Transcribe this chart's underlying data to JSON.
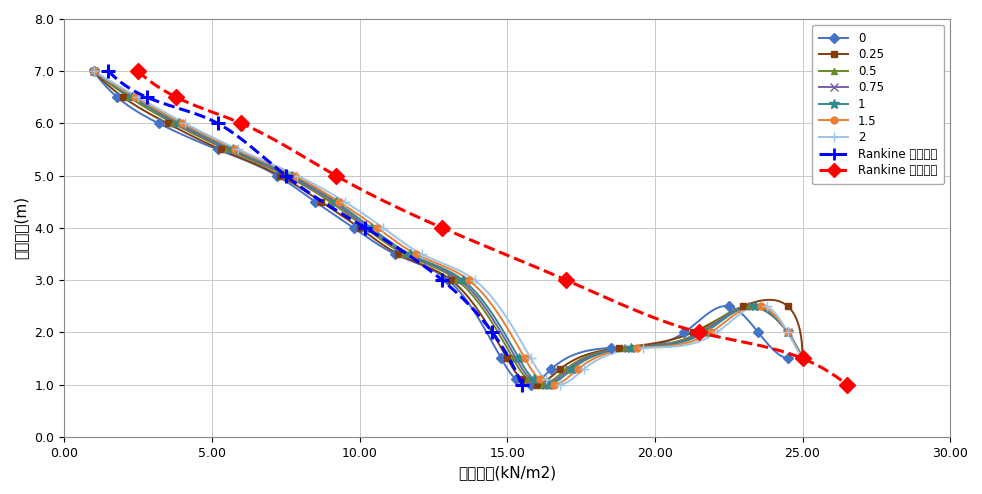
{
  "xlabel": "수평토압(kN/m2)",
  "ylabel": "옷벽높이(m)",
  "xlim": [
    0,
    30
  ],
  "ylim": [
    0,
    8.0
  ],
  "xticks": [
    0.0,
    5.0,
    10.0,
    15.0,
    20.0,
    25.0,
    30.0
  ],
  "yticks": [
    0.0,
    1.0,
    2.0,
    3.0,
    4.0,
    5.0,
    6.0,
    7.0,
    8.0
  ],
  "background_color": "#FFFFFF",
  "grid_color": "#C8C8C8",
  "series": [
    {
      "label": "0",
      "color": "#4472C4",
      "marker": "D",
      "ms": 5,
      "lw": 1.4,
      "x": [
        1.0,
        1.8,
        3.2,
        5.2,
        7.2,
        8.5,
        9.8,
        11.2,
        13.0,
        14.8,
        15.3,
        15.8,
        16.5,
        18.5,
        21.0,
        22.5,
        23.5,
        24.5
      ],
      "y": [
        7.0,
        6.5,
        6.0,
        5.5,
        5.0,
        4.5,
        4.0,
        3.5,
        3.0,
        1.5,
        1.1,
        1.0,
        1.3,
        1.7,
        2.0,
        2.5,
        2.0,
        1.5
      ]
    },
    {
      "label": "0.25",
      "color": "#843C0C",
      "marker": "s",
      "ms": 5,
      "lw": 1.4,
      "x": [
        1.0,
        2.0,
        3.5,
        5.3,
        7.3,
        8.7,
        10.0,
        11.3,
        13.1,
        15.0,
        15.5,
        16.0,
        16.8,
        18.8,
        21.3,
        23.0,
        24.5,
        25.0
      ],
      "y": [
        7.0,
        6.5,
        6.0,
        5.5,
        5.0,
        4.5,
        4.0,
        3.5,
        3.0,
        1.5,
        1.1,
        1.0,
        1.3,
        1.7,
        2.0,
        2.5,
        2.5,
        1.5
      ]
    },
    {
      "label": "0.5",
      "color": "#6A8A23",
      "marker": "^",
      "ms": 5,
      "lw": 1.4,
      "x": [
        1.0,
        2.2,
        3.7,
        5.5,
        7.5,
        9.0,
        10.2,
        11.5,
        13.3,
        15.2,
        15.7,
        16.2,
        17.0,
        19.0,
        21.5,
        23.2,
        24.5,
        25.0
      ],
      "y": [
        7.0,
        6.5,
        6.0,
        5.5,
        5.0,
        4.5,
        4.0,
        3.5,
        3.0,
        1.5,
        1.1,
        1.0,
        1.3,
        1.7,
        2.0,
        2.5,
        2.0,
        1.5
      ]
    },
    {
      "label": "0.75",
      "color": "#7B5EA7",
      "marker": "x",
      "ms": 6,
      "lw": 1.4,
      "x": [
        1.0,
        2.3,
        3.8,
        5.6,
        7.6,
        9.1,
        10.3,
        11.6,
        13.4,
        15.3,
        15.8,
        16.3,
        17.1,
        19.1,
        21.6,
        23.3,
        24.5,
        25.0
      ],
      "y": [
        7.0,
        6.5,
        6.0,
        5.5,
        5.0,
        4.5,
        4.0,
        3.5,
        3.0,
        1.5,
        1.1,
        1.0,
        1.3,
        1.7,
        2.0,
        2.5,
        2.0,
        1.5
      ]
    },
    {
      "label": "1",
      "color": "#2E8B8B",
      "marker": "*",
      "ms": 7,
      "lw": 1.4,
      "x": [
        1.0,
        2.3,
        3.9,
        5.7,
        7.7,
        9.2,
        10.4,
        11.7,
        13.5,
        15.4,
        15.9,
        16.4,
        17.2,
        19.2,
        21.7,
        23.4,
        24.5,
        25.0
      ],
      "y": [
        7.0,
        6.5,
        6.0,
        5.5,
        5.0,
        4.5,
        4.0,
        3.5,
        3.0,
        1.5,
        1.1,
        1.0,
        1.3,
        1.7,
        2.0,
        2.5,
        2.0,
        1.5
      ]
    },
    {
      "label": "1.5",
      "color": "#ED7D31",
      "marker": "o",
      "ms": 5,
      "lw": 1.4,
      "x": [
        1.0,
        2.4,
        4.0,
        5.8,
        7.8,
        9.3,
        10.6,
        11.9,
        13.7,
        15.6,
        16.1,
        16.6,
        17.4,
        19.4,
        21.9,
        23.6,
        24.5,
        25.0
      ],
      "y": [
        7.0,
        6.5,
        6.0,
        5.5,
        5.0,
        4.5,
        4.0,
        3.5,
        3.0,
        1.5,
        1.1,
        1.0,
        1.3,
        1.7,
        2.0,
        2.5,
        2.0,
        1.5
      ]
    },
    {
      "label": "2",
      "color": "#9DC3E6",
      "marker": "+",
      "ms": 7,
      "lw": 1.4,
      "x": [
        1.0,
        2.5,
        4.1,
        5.9,
        7.9,
        9.5,
        10.8,
        12.1,
        13.9,
        15.8,
        16.3,
        16.8,
        17.6,
        19.6,
        22.1,
        23.8,
        24.5,
        25.0
      ],
      "y": [
        7.0,
        6.5,
        6.0,
        5.5,
        5.0,
        4.5,
        4.0,
        3.5,
        3.0,
        1.5,
        1.1,
        1.0,
        1.3,
        1.7,
        2.0,
        2.5,
        2.0,
        1.5
      ]
    }
  ],
  "rankine_active": {
    "label": "Rankine 주동토압",
    "color": "#0000FF",
    "lw": 2.2,
    "x": [
      1.5,
      2.8,
      5.2,
      7.5,
      10.2,
      12.8,
      14.5,
      15.5
    ],
    "y": [
      7.0,
      6.5,
      6.0,
      5.0,
      4.0,
      3.0,
      2.0,
      1.0
    ]
  },
  "rankine_static": {
    "label": "Rankine 정지토압",
    "color": "#FF0000",
    "lw": 2.2,
    "x": [
      2.5,
      3.8,
      6.0,
      9.2,
      12.8,
      17.0,
      21.5,
      25.0,
      26.5
    ],
    "y": [
      7.0,
      6.5,
      6.0,
      5.0,
      4.0,
      3.0,
      2.0,
      1.5,
      1.0
    ]
  }
}
